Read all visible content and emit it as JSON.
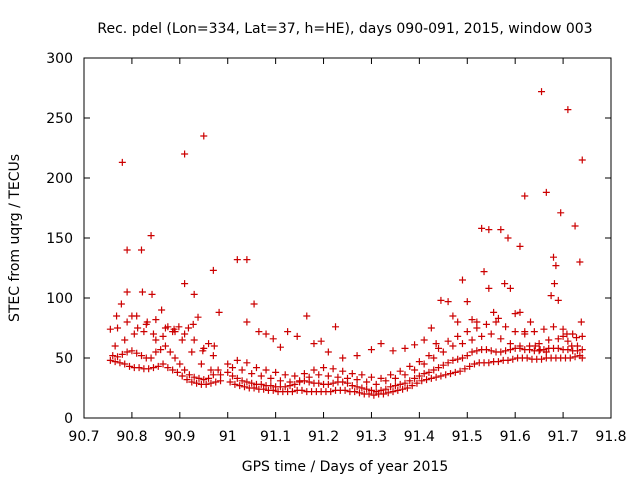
{
  "chart_data": {
    "type": "scatter",
    "title": "Rec. pdel (Lon=334, Lat=37, h=HE), days 090-091, 2015, window 003",
    "xlabel": "GPS time / Days of year 2015",
    "ylabel": "STEC from uqrg / TECUs",
    "xlim": [
      90.7,
      91.8
    ],
    "ylim": [
      0,
      300
    ],
    "xticks": [
      "90.7",
      "90.8",
      "90.9",
      "91",
      "91.1",
      "91.2",
      "91.3",
      "91.4",
      "91.5",
      "91.6",
      "91.7",
      "91.8"
    ],
    "yticks": [
      "0",
      "50",
      "100",
      "150",
      "200",
      "250",
      "300"
    ],
    "grid": false,
    "marker": "plus",
    "color": "#cc0000",
    "series": [
      {
        "x": [
          90.755,
          90.765,
          90.775,
          90.785,
          90.795,
          90.805,
          90.815,
          90.825,
          90.835,
          90.845,
          90.855,
          90.865,
          90.875,
          90.885,
          90.895,
          90.905,
          90.915,
          90.925,
          90.935,
          90.945,
          90.955,
          90.965,
          90.975,
          90.985,
          91.005,
          91.015,
          91.025,
          91.035,
          91.045,
          91.055,
          91.065,
          91.075,
          91.085,
          91.095,
          91.105,
          91.115,
          91.125,
          91.135,
          91.145,
          91.155,
          91.165,
          91.175,
          91.185,
          91.195,
          91.205,
          91.215,
          91.225,
          91.235,
          91.245,
          91.255,
          91.265,
          91.275,
          91.285,
          91.295,
          91.305,
          91.315,
          91.325,
          91.335,
          91.345,
          91.355,
          91.365,
          91.375,
          91.385,
          91.395,
          91.405,
          91.415,
          91.425,
          91.435,
          91.445,
          91.455,
          91.465,
          91.475,
          91.485,
          91.495,
          91.505,
          91.515,
          91.525,
          91.535,
          91.545,
          91.555,
          91.565,
          91.575,
          91.585,
          91.595,
          91.605,
          91.615,
          91.625,
          91.635,
          91.645,
          91.655,
          91.665,
          91.675,
          91.685,
          91.695,
          91.705,
          91.715,
          91.725,
          91.735,
          91.74
        ],
        "y": [
          48,
          47,
          46,
          45,
          43,
          42,
          42,
          41,
          41,
          42,
          43,
          45,
          42,
          40,
          38,
          35,
          32,
          30,
          29,
          28,
          28,
          29,
          30,
          31,
          30,
          28,
          27,
          26,
          25,
          25,
          24,
          24,
          23,
          23,
          22,
          22,
          22,
          22,
          23,
          23,
          22,
          22,
          22,
          22,
          22,
          22,
          23,
          23,
          23,
          22,
          22,
          21,
          20,
          20,
          19,
          20,
          20,
          21,
          22,
          23,
          24,
          25,
          27,
          29,
          31,
          32,
          33,
          34,
          35,
          36,
          37,
          38,
          39,
          41,
          43,
          45,
          46,
          46,
          46,
          47,
          47,
          48,
          48,
          49,
          50,
          50,
          50,
          49,
          49,
          49,
          50,
          50,
          50,
          50,
          50,
          50,
          51,
          52,
          50
        ]
      },
      {
        "x": [
          90.76,
          90.77,
          90.78,
          90.79,
          90.8,
          90.81,
          90.82,
          90.83,
          90.84,
          90.85,
          90.86,
          90.87,
          90.88,
          90.89,
          90.9,
          90.91,
          90.92,
          90.93,
          90.94,
          90.95,
          90.96,
          90.97,
          90.98,
          91.0,
          91.01,
          91.02,
          91.03,
          91.04,
          91.05,
          91.06,
          91.07,
          91.08,
          91.09,
          91.1,
          91.11,
          91.12,
          91.13,
          91.14,
          91.15,
          91.16,
          91.17,
          91.18,
          91.19,
          91.2,
          91.21,
          91.22,
          91.23,
          91.24,
          91.25,
          91.26,
          91.27,
          91.28,
          91.29,
          91.3,
          91.31,
          91.32,
          91.33,
          91.34,
          91.35,
          91.36,
          91.37,
          91.38,
          91.39,
          91.4,
          91.41,
          91.42,
          91.43,
          91.44,
          91.45,
          91.46,
          91.47,
          91.48,
          91.49,
          91.5,
          91.51,
          91.52,
          91.53,
          91.54,
          91.55,
          91.56,
          91.57,
          91.58,
          91.59,
          91.6,
          91.61,
          91.62,
          91.63,
          91.64,
          91.65,
          91.66,
          91.67,
          91.68,
          91.69,
          91.7,
          91.71,
          91.72,
          91.73,
          91.74
        ],
        "y": [
          52,
          51,
          53,
          55,
          56,
          54,
          52,
          50,
          50,
          55,
          57,
          60,
          55,
          50,
          45,
          40,
          36,
          34,
          33,
          32,
          33,
          36,
          40,
          38,
          35,
          33,
          31,
          30,
          29,
          28,
          28,
          27,
          27,
          26,
          26,
          26,
          27,
          28,
          30,
          31,
          30,
          29,
          29,
          28,
          28,
          29,
          30,
          30,
          29,
          27,
          26,
          25,
          24,
          23,
          22,
          23,
          24,
          26,
          27,
          28,
          29,
          31,
          33,
          35,
          37,
          38,
          40,
          42,
          44,
          46,
          48,
          49,
          50,
          52,
          55,
          56,
          57,
          57,
          56,
          55,
          55,
          56,
          57,
          58,
          58,
          57,
          57,
          56,
          56,
          57,
          58,
          58,
          58,
          57,
          57,
          56,
          56,
          57
        ]
      },
      {
        "x": [
          90.765,
          90.785,
          90.805,
          90.825,
          90.845,
          90.865,
          90.885,
          90.905,
          90.925,
          90.945,
          90.965,
          90.985,
          91.01,
          91.03,
          91.05,
          91.07,
          91.09,
          91.11,
          91.13,
          91.15,
          91.17,
          91.19,
          91.21,
          91.23,
          91.25,
          91.27,
          91.29,
          91.31,
          91.33,
          91.35,
          91.37,
          91.39,
          91.41,
          91.43,
          91.45,
          91.47,
          91.49,
          91.51,
          91.53,
          91.55,
          91.57,
          91.59,
          91.61,
          91.63,
          91.65,
          91.67,
          91.69,
          91.71,
          91.73
        ],
        "y": [
          60,
          65,
          70,
          72,
          70,
          68,
          72,
          65,
          55,
          45,
          40,
          36,
          42,
          40,
          37,
          35,
          33,
          31,
          30,
          31,
          34,
          36,
          35,
          34,
          33,
          32,
          30,
          28,
          31,
          33,
          36,
          40,
          45,
          50,
          55,
          60,
          62,
          65,
          68,
          70,
          66,
          62,
          60,
          60,
          62,
          65,
          66,
          64,
          60
        ]
      },
      {
        "x": [
          90.77,
          90.79,
          90.81,
          90.83,
          90.85,
          90.87,
          90.89,
          90.91,
          90.93,
          90.95,
          90.97,
          91.0,
          91.02,
          91.04,
          91.06,
          91.08,
          91.1,
          91.12,
          91.14,
          91.16,
          91.18,
          91.2,
          91.22,
          91.24,
          91.26,
          91.28,
          91.3,
          91.32,
          91.34,
          91.36,
          91.38,
          91.4,
          91.42,
          91.44,
          91.46,
          91.48,
          91.5,
          91.52,
          91.54,
          91.56,
          91.58,
          91.6,
          91.62,
          91.64,
          91.66,
          91.68,
          91.7,
          91.72,
          91.74
        ],
        "y": [
          75,
          80,
          85,
          78,
          82,
          75,
          72,
          70,
          65,
          58,
          52,
          45,
          48,
          46,
          42,
          40,
          38,
          36,
          35,
          37,
          40,
          42,
          41,
          39,
          37,
          36,
          34,
          33,
          36,
          39,
          43,
          47,
          52,
          58,
          64,
          68,
          72,
          75,
          78,
          80,
          76,
          72,
          70,
          72,
          74,
          76,
          74,
          70,
          68
        ]
      },
      {
        "x": [
          90.755,
          90.768,
          90.778,
          90.79,
          90.8,
          90.812,
          90.822,
          90.832,
          90.842,
          90.85,
          90.862,
          90.875,
          90.888,
          90.898,
          90.91,
          90.918,
          90.928,
          90.938,
          90.948,
          90.96,
          90.972,
          90.982,
          91.02,
          91.04,
          91.055,
          91.065,
          91.08,
          91.095,
          91.11,
          91.125,
          91.145,
          91.165,
          91.18,
          91.195,
          91.21,
          91.225,
          91.24,
          91.27,
          91.3,
          91.32,
          91.345,
          91.37,
          91.39,
          91.41,
          91.425,
          91.435,
          91.445,
          91.46,
          91.47,
          91.48,
          91.49,
          91.5,
          91.51,
          91.52,
          91.535,
          91.545,
          91.555,
          91.565,
          91.578,
          91.59,
          91.6,
          91.61,
          91.62,
          91.632,
          91.642,
          91.652,
          91.665,
          91.675,
          91.682,
          91.69,
          91.7,
          91.708,
          91.718,
          91.728,
          91.738
        ],
        "y": [
          74,
          85,
          95,
          105,
          85,
          75,
          105,
          80,
          103,
          65,
          90,
          76,
          74,
          76,
          112,
          75,
          78,
          84,
          56,
          62,
          60,
          88,
          132,
          80,
          95,
          72,
          70,
          66,
          59,
          72,
          68,
          85,
          62,
          64,
          55,
          76,
          50,
          52,
          57,
          62,
          56,
          58,
          61,
          65,
          75,
          62,
          98,
          97,
          85,
          80,
          115,
          97,
          82,
          80,
          122,
          108,
          88,
          83,
          112,
          108,
          87,
          88,
          72,
          80,
          60,
          57,
          55,
          102,
          112,
          98,
          68,
          70,
          60,
          67,
          80
        ]
      },
      {
        "x": [
          90.78,
          90.79,
          90.82,
          90.84,
          90.91,
          90.93,
          90.95,
          90.97,
          91.04,
          91.53,
          91.545,
          91.57,
          91.585,
          91.61,
          91.62,
          91.655,
          91.665,
          91.68,
          91.685,
          91.695,
          91.71,
          91.725,
          91.735,
          91.74
        ],
        "y": [
          213,
          140,
          140,
          152,
          220,
          103,
          235,
          123,
          132,
          158,
          157,
          157,
          150,
          143,
          185,
          272,
          188,
          134,
          127,
          171,
          257,
          160,
          130,
          215
        ]
      }
    ]
  }
}
